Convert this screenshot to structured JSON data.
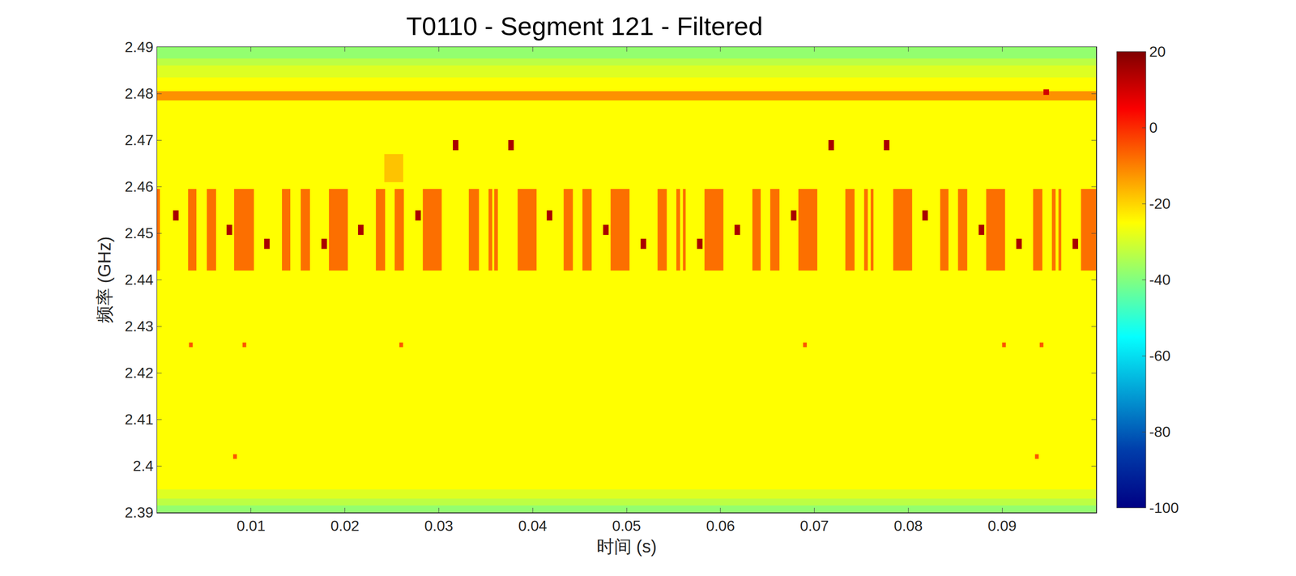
{
  "chart_data": {
    "type": "heatmap",
    "title": "T0110 - Segment 121 - Filtered",
    "x_label": "时间 (s)",
    "y_label": "频率 (GHz)",
    "xlim": [
      0,
      0.1
    ],
    "ylim": [
      2.39,
      2.49
    ],
    "xticks": [
      0.01,
      0.02,
      0.03,
      0.04,
      0.05,
      0.06,
      0.07,
      0.08,
      0.09
    ],
    "yticks": [
      2.39,
      2.4,
      2.41,
      2.42,
      2.43,
      2.44,
      2.45,
      2.46,
      2.47,
      2.48,
      2.49
    ],
    "colorbar_range": [
      -100,
      20
    ],
    "colorbar_ticks": [
      -100,
      -80,
      -60,
      -40,
      -20,
      0,
      20
    ],
    "background": {
      "x": [
        0,
        0.1
      ],
      "y_edges": [
        2.39,
        2.3915,
        2.393,
        2.395,
        2.4835,
        2.486,
        2.4875,
        2.49
      ],
      "values": [
        -38,
        -33,
        -29,
        -25,
        -29,
        -33,
        -38
      ]
    },
    "cells": [
      {
        "y": [
          2.442,
          2.4595
        ],
        "value": -8,
        "x": [
          [
            0,
            0.0003
          ],
          [
            0.0033,
            0.0042
          ],
          [
            0.0053,
            0.0063
          ],
          [
            0.0082,
            0.0103
          ],
          [
            0.0133,
            0.0142
          ],
          [
            0.0153,
            0.0163
          ],
          [
            0.0183,
            0.0203
          ],
          [
            0.0233,
            0.0243
          ],
          [
            0.0253,
            0.0263
          ],
          [
            0.0283,
            0.0303
          ],
          [
            0.0332,
            0.0343
          ],
          [
            0.0353,
            0.0357
          ],
          [
            0.0359,
            0.0363
          ],
          [
            0.0384,
            0.0404
          ],
          [
            0.0433,
            0.0443
          ],
          [
            0.0453,
            0.0463
          ],
          [
            0.0483,
            0.0503
          ],
          [
            0.0533,
            0.0543
          ],
          [
            0.0553,
            0.0557
          ],
          [
            0.056,
            0.0563
          ],
          [
            0.0583,
            0.0603
          ],
          [
            0.0634,
            0.0643
          ],
          [
            0.0653,
            0.0663
          ],
          [
            0.0683,
            0.0703
          ],
          [
            0.0733,
            0.0743
          ],
          [
            0.0753,
            0.0757
          ],
          [
            0.076,
            0.0763
          ],
          [
            0.0784,
            0.0804
          ],
          [
            0.0834,
            0.0843
          ],
          [
            0.0853,
            0.0863
          ],
          [
            0.0883,
            0.0903
          ],
          [
            0.0933,
            0.0943
          ],
          [
            0.0953,
            0.0957
          ],
          [
            0.096,
            0.0963
          ],
          [
            0.0984,
            0.1
          ]
        ]
      },
      {
        "y": [
          2.4527,
          2.4549
        ],
        "value": 15,
        "x": [
          [
            0.0017,
            0.0023
          ],
          [
            0.0275,
            0.0281
          ],
          [
            0.0415,
            0.0421
          ],
          [
            0.0675,
            0.0681
          ],
          [
            0.0815,
            0.0821
          ]
        ]
      },
      {
        "y": [
          2.4496,
          2.4518
        ],
        "value": 15,
        "x": [
          [
            0.0074,
            0.008
          ],
          [
            0.0214,
            0.022
          ],
          [
            0.0475,
            0.0481
          ],
          [
            0.0615,
            0.0621
          ],
          [
            0.0875,
            0.0881
          ]
        ]
      },
      {
        "y": [
          2.4466,
          2.4488
        ],
        "value": 15,
        "x": [
          [
            0.0114,
            0.012
          ],
          [
            0.0175,
            0.0181
          ],
          [
            0.0515,
            0.0521
          ],
          [
            0.0575,
            0.0581
          ],
          [
            0.0915,
            0.0921
          ],
          [
            0.0975,
            0.0981
          ]
        ]
      },
      {
        "y": [
          2.4678,
          2.47
        ],
        "value": 15,
        "x": [
          [
            0.0315,
            0.0321
          ],
          [
            0.0374,
            0.038
          ],
          [
            0.0715,
            0.0721
          ],
          [
            0.0774,
            0.078
          ]
        ]
      },
      {
        "y": [
          2.4785,
          2.4805
        ],
        "value": -12,
        "x": [
          [
            0,
            0.1
          ]
        ]
      },
      {
        "y": [
          2.4797,
          2.4809
        ],
        "value": 10,
        "x": [
          [
            0.0944,
            0.095
          ]
        ]
      },
      {
        "y": [
          2.461,
          2.467
        ],
        "value": -18,
        "x": [
          [
            0.0242,
            0.0262
          ]
        ]
      },
      {
        "y": [
          2.4255,
          2.4265
        ],
        "value": -5,
        "x": [
          [
            0.0034,
            0.0038
          ],
          [
            0.0091,
            0.0095
          ],
          [
            0.0258,
            0.0262
          ],
          [
            0.0688,
            0.0692
          ],
          [
            0.09,
            0.0904
          ],
          [
            0.094,
            0.0944
          ]
        ]
      },
      {
        "y": [
          2.4015,
          2.4025
        ],
        "value": -5,
        "x": [
          [
            0.0081,
            0.0085
          ],
          [
            0.0935,
            0.0939
          ]
        ]
      }
    ]
  }
}
